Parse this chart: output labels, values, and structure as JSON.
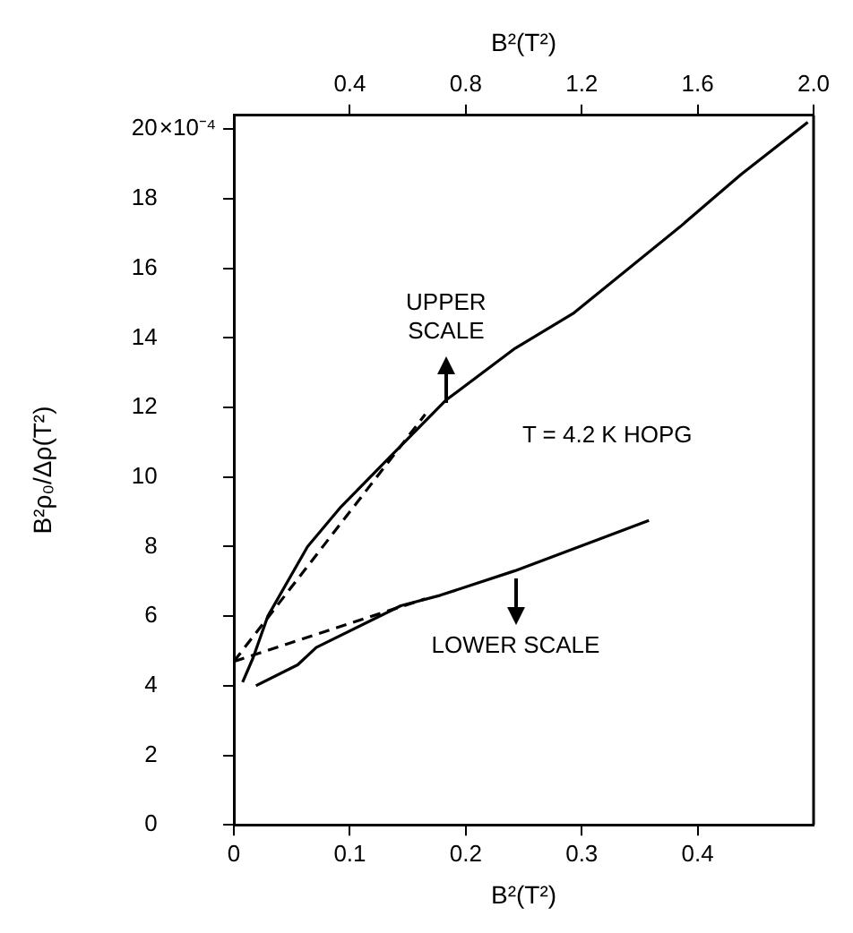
{
  "chart_data": {
    "type": "line",
    "xlabel": "B²(T²)",
    "x2label": "B²(T²)",
    "ylabel": "B²ρ₀/Δρ(T²)",
    "xlim": [
      0,
      0.5
    ],
    "xticks": [
      0,
      0.1,
      0.2,
      0.3,
      0.4
    ],
    "x2lim": [
      0,
      2.0
    ],
    "x2ticks": [
      {
        "value": 0.4,
        "label": "0.4"
      },
      {
        "value": 0.8,
        "label": "0.8"
      },
      {
        "value": 1.2,
        "label": "1.2"
      },
      {
        "value": 1.6,
        "label": "1.6"
      },
      {
        "value": 2.0,
        "label": "2.0"
      }
    ],
    "ylim": [
      0,
      20.4
    ],
    "yticks": [
      0,
      2,
      4,
      6,
      8,
      10,
      12,
      14,
      16,
      18,
      20
    ],
    "grid": false,
    "legend": false,
    "marker": "none",
    "series": [
      {
        "color": "#000000",
        "axis": "x2",
        "line_style": "solid",
        "x": [
          0.03,
          0.066,
          0.117,
          0.254,
          0.37,
          0.47,
          0.73,
          0.97,
          1.17,
          1.54,
          1.75,
          1.98
        ],
        "values": [
          4.1,
          4.8,
          6.0,
          8.0,
          9.15,
          10.0,
          12.2,
          13.7,
          14.7,
          17.2,
          18.7,
          20.2
        ]
      },
      {
        "color": "#000000",
        "axis": "x2",
        "line_style": "dashed",
        "x": [
          0,
          0.66
        ],
        "values": [
          4.7,
          11.8
        ]
      },
      {
        "color": "#000000",
        "line_style": "solid",
        "x": [
          0.019,
          0.055,
          0.071,
          0.144,
          0.178,
          0.242,
          0.358
        ],
        "values": [
          4.0,
          4.6,
          5.1,
          6.3,
          6.6,
          7.3,
          8.75
        ]
      },
      {
        "color": "#000000",
        "line_style": "dashed",
        "x": [
          0,
          0.165
        ],
        "values": [
          4.7,
          6.5
        ]
      }
    ],
    "annotations": [
      "UPPER\nSCALE",
      "T = 4.2 K HOPG",
      "LOWER SCALE",
      "×10⁻⁴"
    ]
  }
}
